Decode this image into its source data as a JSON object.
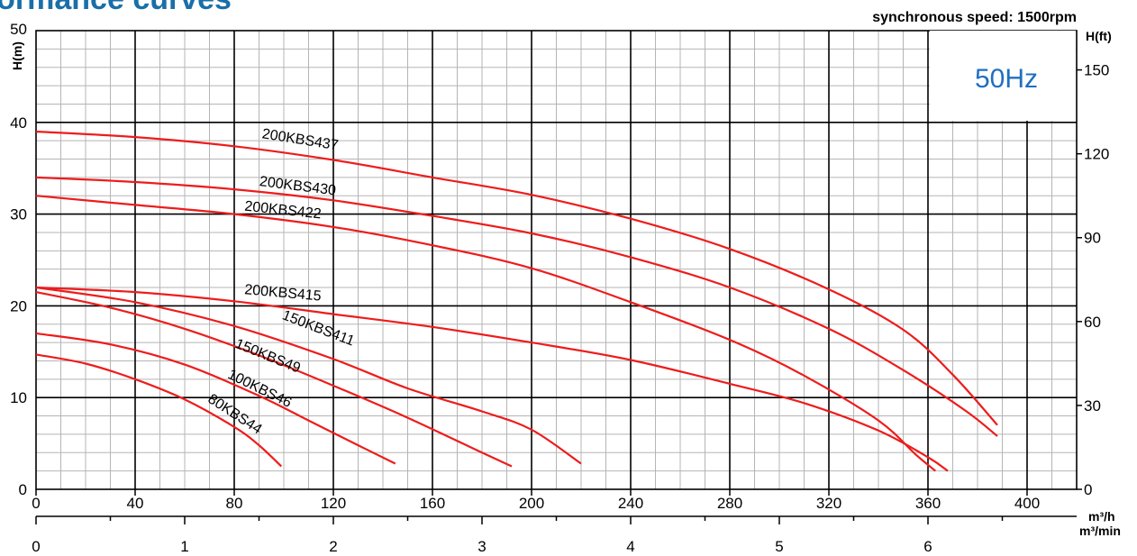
{
  "chart_data": {
    "type": "line",
    "title": "Performance curves",
    "subtitle": "synchronous speed: 1500rpm",
    "badge": "50Hz",
    "xlabel": "m³/h",
    "xlabel_secondary": "m³/min",
    "ylabel_left": "H(m)",
    "ylabel_right": "H(ft)",
    "xlim": [
      0,
      420
    ],
    "ylim": [
      0,
      50
    ],
    "x_ticks": [
      "0",
      "40",
      "80",
      "120",
      "160",
      "200",
      "240",
      "280",
      "320",
      "360",
      "400"
    ],
    "x_ticks_secondary": [
      "0",
      "1",
      "2",
      "3",
      "4",
      "5",
      "6"
    ],
    "y_ticks_left": [
      "0",
      "10",
      "20",
      "30",
      "40",
      "50"
    ],
    "y_ticks_right": [
      "0",
      "30",
      "60",
      "90",
      "120",
      "150"
    ],
    "grid": true,
    "series": [
      {
        "name": "200KBS437",
        "x": [
          0,
          40,
          80,
          120,
          160,
          200,
          240,
          280,
          320,
          350,
          370,
          388
        ],
        "y": [
          39,
          38.4,
          37.4,
          35.9,
          34,
          32.1,
          29.5,
          26.2,
          21.8,
          17.4,
          12.5,
          7
        ]
      },
      {
        "name": "200KBS430",
        "x": [
          0,
          40,
          80,
          120,
          160,
          200,
          240,
          280,
          320,
          350,
          375,
          388
        ],
        "y": [
          34,
          33.5,
          32.7,
          31.5,
          29.8,
          27.9,
          25.3,
          22,
          17.5,
          13,
          8.6,
          5.8
        ]
      },
      {
        "name": "200KBS422",
        "x": [
          0,
          40,
          80,
          120,
          160,
          200,
          240,
          280,
          310,
          340,
          355,
          363
        ],
        "y": [
          32,
          31,
          30,
          28.6,
          26.6,
          24.1,
          20.4,
          16.3,
          12.4,
          7.5,
          3.8,
          2
        ]
      },
      {
        "name": "200KBS415",
        "x": [
          0,
          40,
          80,
          120,
          160,
          200,
          240,
          280,
          310,
          340,
          360,
          368
        ],
        "y": [
          22,
          21.5,
          20.5,
          19.1,
          17.7,
          16,
          14.1,
          11.5,
          9.4,
          6.4,
          3.5,
          2
        ]
      },
      {
        "name": "150KBS411",
        "x": [
          0,
          40,
          80,
          120,
          150,
          180,
          200,
          220
        ],
        "y": [
          22,
          20.4,
          17.8,
          14.2,
          11,
          8.5,
          6.5,
          2.8
        ]
      },
      {
        "name": "150KBS49",
        "x": [
          0,
          30,
          60,
          90,
          120,
          150,
          180,
          192
        ],
        "y": [
          21.5,
          19.8,
          17.5,
          14.6,
          11.3,
          7.8,
          4,
          2.5
        ]
      },
      {
        "name": "100KBS46",
        "x": [
          0,
          30,
          60,
          90,
          110,
          130,
          145
        ],
        "y": [
          17,
          15.8,
          13.6,
          10.2,
          7.5,
          4.8,
          2.8
        ]
      },
      {
        "name": "80KBS44",
        "x": [
          0,
          20,
          40,
          60,
          80,
          90,
          99
        ],
        "y": [
          14.7,
          13.7,
          12,
          9.8,
          6.8,
          4.8,
          2.5
        ]
      }
    ],
    "labels": [
      {
        "text": "200KBS437",
        "x": 91,
        "y": 38.3,
        "angle": 9
      },
      {
        "text": "200KBS430",
        "x": 90,
        "y": 33.1,
        "angle": 7
      },
      {
        "text": "200KBS422",
        "x": 84,
        "y": 30.4,
        "angle": 6
      },
      {
        "text": "200KBS415",
        "x": 84,
        "y": 21.3,
        "angle": 5
      },
      {
        "text": "150KBS411",
        "x": 99,
        "y": 18.6,
        "angle": 21
      },
      {
        "text": "150KBS49",
        "x": 80,
        "y": 15.5,
        "angle": 22
      },
      {
        "text": "100KBS46",
        "x": 77,
        "y": 12.2,
        "angle": 26
      },
      {
        "text": "80KBS44",
        "x": 69,
        "y": 9.6,
        "angle": 33
      }
    ]
  }
}
